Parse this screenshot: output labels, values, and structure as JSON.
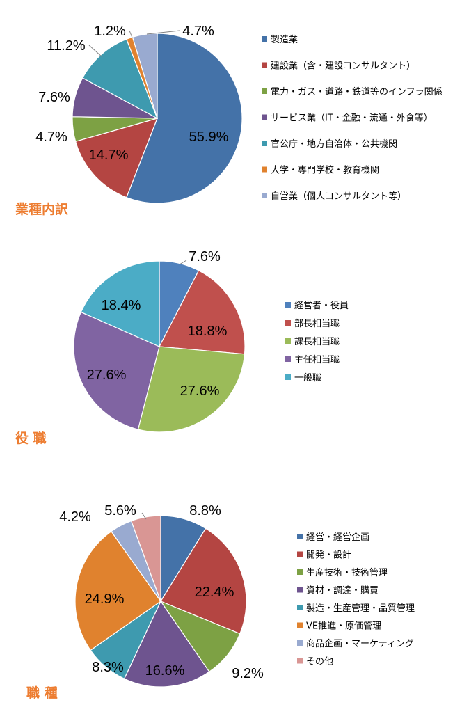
{
  "chart_data": [
    {
      "type": "pie",
      "title": "業種内訳",
      "categories": [
        "製造業",
        "建設業（含・建設コンサルタント）",
        "電力・ガス・道路・鉄道等のインフラ関係",
        "サービス業（IT・金融・流通・外食等）",
        "官公庁・地方自治体・公共機関",
        "大学・専門学校・教育機関",
        "自営業（個人コンサルタント等）"
      ],
      "values": [
        55.9,
        14.7,
        4.7,
        7.6,
        11.2,
        1.2,
        4.7
      ],
      "labels": [
        "55.9%",
        "14.7%",
        "4.7%",
        "7.6%",
        "11.2%",
        "1.2%",
        "4.7%"
      ],
      "colors": [
        "#4472A8",
        "#B44542",
        "#7DA144",
        "#6E548F",
        "#3E9AAF",
        "#E0822E",
        "#99AAD0"
      ],
      "legend": "right"
    },
    {
      "type": "pie",
      "title": "役 職",
      "categories": [
        "経営者・役員",
        "部長相当職",
        "課長相当職",
        "主任相当職",
        "一般職"
      ],
      "values": [
        7.6,
        18.8,
        27.6,
        27.6,
        18.4
      ],
      "labels": [
        "7.6%",
        "18.8%",
        "27.6%",
        "27.6%",
        "18.4%"
      ],
      "colors": [
        "#4F81BD",
        "#C0504D",
        "#9BBB59",
        "#8064A2",
        "#4BACC6"
      ],
      "legend": "right"
    },
    {
      "type": "pie",
      "title": "職 種",
      "categories": [
        "経営・経営企画",
        "開発・設計",
        "生産技術・技術管理",
        "資材・調達・購買",
        "製造・生産管理・品質管理",
        "VE推進・原価管理",
        "商品企画・マーケティング",
        "その他"
      ],
      "values": [
        8.8,
        22.4,
        9.2,
        16.6,
        8.3,
        24.9,
        4.2,
        5.6
      ],
      "labels": [
        "8.8%",
        "22.4%",
        "9.2%",
        "16.6%",
        "8.3%",
        "24.9%",
        "4.2%",
        "5.6%"
      ],
      "colors": [
        "#4472A8",
        "#B44542",
        "#7DA144",
        "#6E548F",
        "#3E9AAF",
        "#E0822E",
        "#99AAD0",
        "#D99694"
      ],
      "legend": "right"
    }
  ]
}
